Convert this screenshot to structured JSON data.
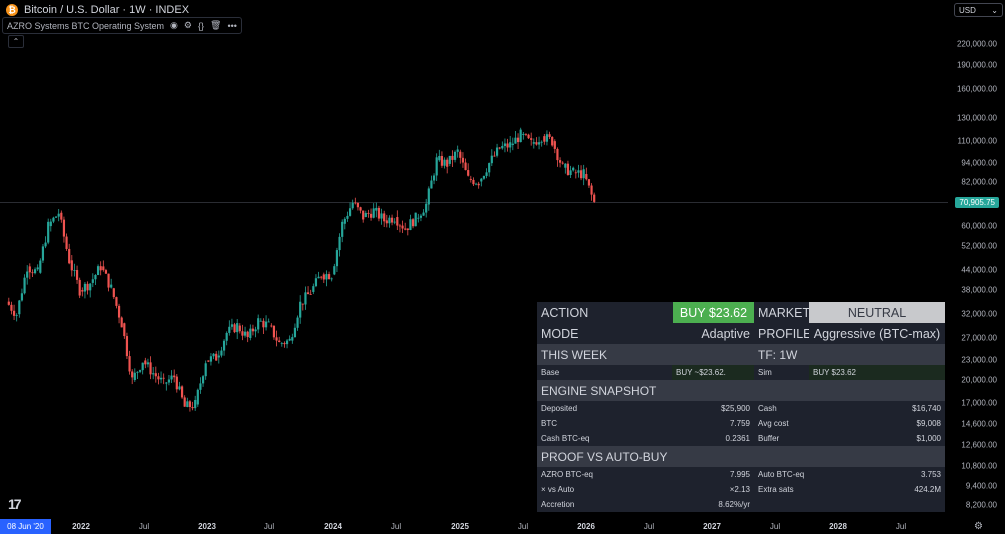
{
  "header": {
    "symbol_title": "Bitcoin / U.S. Dollar · 1W · INDEX",
    "logo_letter": "₿",
    "indicator_name": "AZRO Systems BTC Operating System",
    "collapse_glyph": "⌃"
  },
  "currency": {
    "label": "USD",
    "chevron": "⌄"
  },
  "price_axis": [
    "220,000.00",
    "190,000.00",
    "160,000.00",
    "130,000.00",
    "110,000.00",
    "94,000.00",
    "82,000.00",
    "60,000.00",
    "52,000.00",
    "44,000.00",
    "38,000.00",
    "32,000.00",
    "27,000.00",
    "23,000.00",
    "20,000.00",
    "17,000.00",
    "14,600.00",
    "12,600.00",
    "10,800.00",
    "9,400.00",
    "8,200.00"
  ],
  "current_price": "70,905.75",
  "time_axis": {
    "start_date": "08 Jun '20",
    "labels": [
      "2022",
      "Jul",
      "2023",
      "Jul",
      "2024",
      "Jul",
      "2025",
      "Jul",
      "2026",
      "Jul",
      "2027",
      "Jul",
      "2028",
      "Jul"
    ]
  },
  "panel": {
    "action_label": "ACTION",
    "action_value": "BUY $23.62",
    "market_label": "MARKET",
    "market_value": "NEUTRAL",
    "mode_label": "MODE",
    "mode_value": "Adaptive",
    "profile_label": "PROFILE",
    "profile_value": "Aggressive (BTC-max)",
    "this_week": "THIS WEEK",
    "tf": "TF: 1W",
    "base_label": "Base",
    "base_value": "BUY ~$23.62.",
    "sim_label": "Sim",
    "sim_value": "BUY $23.62",
    "engine_title": "ENGINE SNAPSHOT",
    "engine_rows": [
      {
        "l1": "Deposited",
        "v1": "$25,900",
        "l2": "Cash",
        "v2": "$16,740"
      },
      {
        "l1": "BTC",
        "v1": "7.759",
        "l2": "Avg cost",
        "v2": "$9,008"
      },
      {
        "l1": "Cash BTC-eq",
        "v1": "0.2361",
        "l2": "Buffer",
        "v2": "$1,000"
      }
    ],
    "proof_title": "PROOF VS AUTO-BUY",
    "proof_rows": [
      {
        "l1": "AZRO BTC-eq",
        "v1": "7.995",
        "l2": "Auto BTC-eq",
        "v2": "3.753"
      },
      {
        "l1": "× vs Auto",
        "v1": "×2.13",
        "l2": "Extra sats",
        "v2": "424.2M"
      },
      {
        "l1": "Accretion",
        "v1": "8.62%/yr",
        "l2": "",
        "v2": ""
      }
    ]
  },
  "colors": {
    "up": "#26a69a",
    "down": "#ef5350",
    "buy": "#4caf50",
    "neutral": "#c8c9cc"
  },
  "chart_data": {
    "type": "candlestick",
    "title": "Bitcoin / U.S. Dollar · 1W · INDEX",
    "scale": "log",
    "ylim": [
      8200,
      220000
    ],
    "current_price": 70905.75,
    "x_labels": [
      "2022",
      "Jul",
      "2023",
      "Jul",
      "2024",
      "Jul",
      "2025",
      "Jul",
      "2026",
      "Jul",
      "2027",
      "Jul",
      "2028",
      "Jul"
    ],
    "series": [
      {
        "name": "BTC/USD",
        "close_path": [
          [
            "2021-06",
            35000
          ],
          [
            "2021-07",
            32000
          ],
          [
            "2021-08",
            45000
          ],
          [
            "2021-09",
            43000
          ],
          [
            "2021-10",
            60000
          ],
          [
            "2021-11",
            66000
          ],
          [
            "2021-12",
            47000
          ],
          [
            "2022-01",
            38000
          ],
          [
            "2022-02",
            40000
          ],
          [
            "2022-03",
            45000
          ],
          [
            "2022-04",
            38500
          ],
          [
            "2022-05",
            30000
          ],
          [
            "2022-06",
            20000
          ],
          [
            "2022-07",
            23000
          ],
          [
            "2022-08",
            21000
          ],
          [
            "2022-09",
            19500
          ],
          [
            "2022-10",
            20500
          ],
          [
            "2022-11",
            16500
          ],
          [
            "2022-12",
            16800
          ],
          [
            "2023-01",
            23000
          ],
          [
            "2023-02",
            23500
          ],
          [
            "2023-03",
            28000
          ],
          [
            "2023-04",
            29500
          ],
          [
            "2023-05",
            27000
          ],
          [
            "2023-06",
            30500
          ],
          [
            "2023-07",
            29500
          ],
          [
            "2023-08",
            26000
          ],
          [
            "2023-09",
            26500
          ],
          [
            "2023-10",
            34500
          ],
          [
            "2023-11",
            37500
          ],
          [
            "2023-12",
            42500
          ],
          [
            "2024-01",
            42500
          ],
          [
            "2024-02",
            61000
          ],
          [
            "2024-03",
            71000
          ],
          [
            "2024-04",
            64000
          ],
          [
            "2024-05",
            67000
          ],
          [
            "2024-06",
            62500
          ],
          [
            "2024-07",
            64000
          ],
          [
            "2024-08",
            59000
          ],
          [
            "2024-09",
            63500
          ],
          [
            "2024-10",
            70000
          ],
          [
            "2024-11",
            96000
          ],
          [
            "2024-12",
            93500
          ],
          [
            "2025-01",
            102000
          ],
          [
            "2025-02",
            84000
          ],
          [
            "2025-03",
            82500
          ],
          [
            "2025-04",
            94000
          ],
          [
            "2025-05",
            104500
          ],
          [
            "2025-06",
            107000
          ],
          [
            "2025-07",
            115000
          ],
          [
            "2025-08",
            108000
          ],
          [
            "2025-09",
            114000
          ],
          [
            "2025-10",
            110000
          ],
          [
            "2025-11",
            91000
          ],
          [
            "2025-12",
            88000
          ],
          [
            "2026-01",
            87000
          ],
          [
            "2026-02",
            70905.75
          ]
        ]
      }
    ]
  }
}
